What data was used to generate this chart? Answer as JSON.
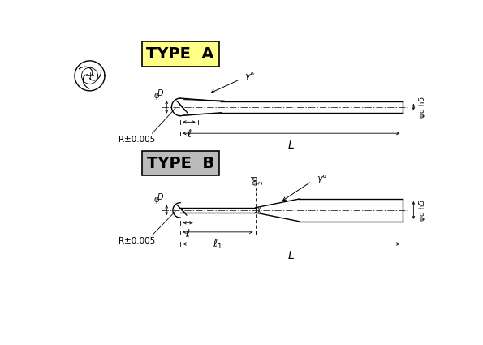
{
  "bg_color": "#ffffff",
  "line_color": "#000000",
  "title_a_bg": "#ffff88",
  "title_b_bg": "#bbbbbb",
  "title_a_text": "TYPE  A",
  "title_b_text": "TYPE  B",
  "note_r": "R±0.005"
}
